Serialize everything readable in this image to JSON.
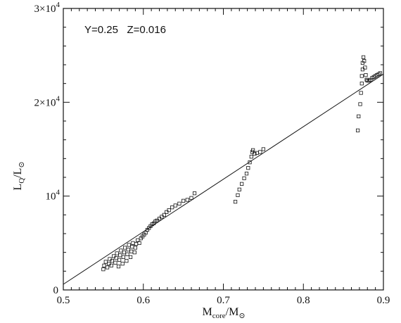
{
  "chart_data": {
    "type": "scatter",
    "title": "",
    "annotation": "Y=0.25   Z=0.016",
    "xlabel": {
      "main": "M",
      "sub": "core",
      "rest": "/M",
      "sub2": "⊙"
    },
    "ylabel": {
      "main": "L",
      "sub": "Q",
      "rest": "/L",
      "sub2": "⊙"
    },
    "xlim": [
      0.5,
      0.9
    ],
    "ylim": [
      0,
      30000
    ],
    "grid": false,
    "x_ticks": [
      {
        "value": 0.5,
        "label": "0.5"
      },
      {
        "value": 0.6,
        "label": "0.6"
      },
      {
        "value": 0.7,
        "label": "0.7"
      },
      {
        "value": 0.8,
        "label": "0.8"
      },
      {
        "value": 0.9,
        "label": "0.9"
      }
    ],
    "y_ticks": [
      {
        "value": 0,
        "label": "0",
        "exp": ""
      },
      {
        "value": 10000,
        "label": "10",
        "exp": "4"
      },
      {
        "value": 20000,
        "label": "2×10",
        "exp": "4"
      },
      {
        "value": 30000,
        "label": "3×10",
        "exp": "4"
      }
    ],
    "fit_line": {
      "x": [
        0.5,
        0.9
      ],
      "y": [
        600,
        23000
      ]
    },
    "series": [
      {
        "marker": "square",
        "points": [
          [
            0.55,
            2200
          ],
          [
            0.551,
            2600
          ],
          [
            0.553,
            3000
          ],
          [
            0.555,
            2400
          ],
          [
            0.557,
            2800
          ],
          [
            0.558,
            3300
          ],
          [
            0.56,
            2600
          ],
          [
            0.561,
            3100
          ],
          [
            0.563,
            3600
          ],
          [
            0.565,
            2900
          ],
          [
            0.566,
            3400
          ],
          [
            0.567,
            3900
          ],
          [
            0.569,
            2500
          ],
          [
            0.57,
            3200
          ],
          [
            0.571,
            3700
          ],
          [
            0.572,
            4200
          ],
          [
            0.574,
            2800
          ],
          [
            0.575,
            3500
          ],
          [
            0.576,
            4000
          ],
          [
            0.577,
            4500
          ],
          [
            0.579,
            3100
          ],
          [
            0.58,
            3800
          ],
          [
            0.581,
            4300
          ],
          [
            0.582,
            4800
          ],
          [
            0.584,
            3500
          ],
          [
            0.585,
            4100
          ],
          [
            0.586,
            4600
          ],
          [
            0.587,
            5000
          ],
          [
            0.589,
            4000
          ],
          [
            0.59,
            4500
          ],
          [
            0.591,
            4900
          ],
          [
            0.593,
            5300
          ],
          [
            0.595,
            5000
          ],
          [
            0.597,
            5500
          ],
          [
            0.599,
            5700
          ],
          [
            0.601,
            5900
          ],
          [
            0.603,
            6100
          ],
          [
            0.605,
            6400
          ],
          [
            0.607,
            6600
          ],
          [
            0.609,
            6800
          ],
          [
            0.611,
            7000
          ],
          [
            0.613,
            7100
          ],
          [
            0.615,
            7300
          ],
          [
            0.617,
            7400
          ],
          [
            0.62,
            7600
          ],
          [
            0.623,
            7800
          ],
          [
            0.626,
            8000
          ],
          [
            0.629,
            8300
          ],
          [
            0.632,
            8500
          ],
          [
            0.636,
            8800
          ],
          [
            0.64,
            9000
          ],
          [
            0.645,
            9200
          ],
          [
            0.65,
            9500
          ],
          [
            0.655,
            9600
          ],
          [
            0.66,
            9800
          ],
          [
            0.664,
            10300
          ],
          [
            0.715,
            9400
          ],
          [
            0.718,
            10100
          ],
          [
            0.72,
            10700
          ],
          [
            0.723,
            11300
          ],
          [
            0.726,
            11900
          ],
          [
            0.729,
            12400
          ],
          [
            0.731,
            13000
          ],
          [
            0.733,
            13600
          ],
          [
            0.735,
            14200
          ],
          [
            0.736,
            14700
          ],
          [
            0.737,
            14900
          ],
          [
            0.739,
            14500
          ],
          [
            0.742,
            14600
          ],
          [
            0.746,
            14700
          ],
          [
            0.75,
            15000
          ],
          [
            0.868,
            17000
          ],
          [
            0.869,
            18500
          ],
          [
            0.871,
            19800
          ],
          [
            0.872,
            21000
          ],
          [
            0.873,
            22000
          ],
          [
            0.873,
            22800
          ],
          [
            0.874,
            23500
          ],
          [
            0.874,
            24200
          ],
          [
            0.875,
            24800
          ],
          [
            0.876,
            24400
          ],
          [
            0.877,
            23700
          ],
          [
            0.878,
            22900
          ],
          [
            0.879,
            22400
          ],
          [
            0.88,
            22300
          ],
          [
            0.882,
            22300
          ],
          [
            0.884,
            22400
          ],
          [
            0.886,
            22600
          ],
          [
            0.888,
            22700
          ],
          [
            0.89,
            22800
          ],
          [
            0.892,
            22900
          ],
          [
            0.894,
            23000
          ],
          [
            0.896,
            23100
          ]
        ]
      }
    ]
  }
}
